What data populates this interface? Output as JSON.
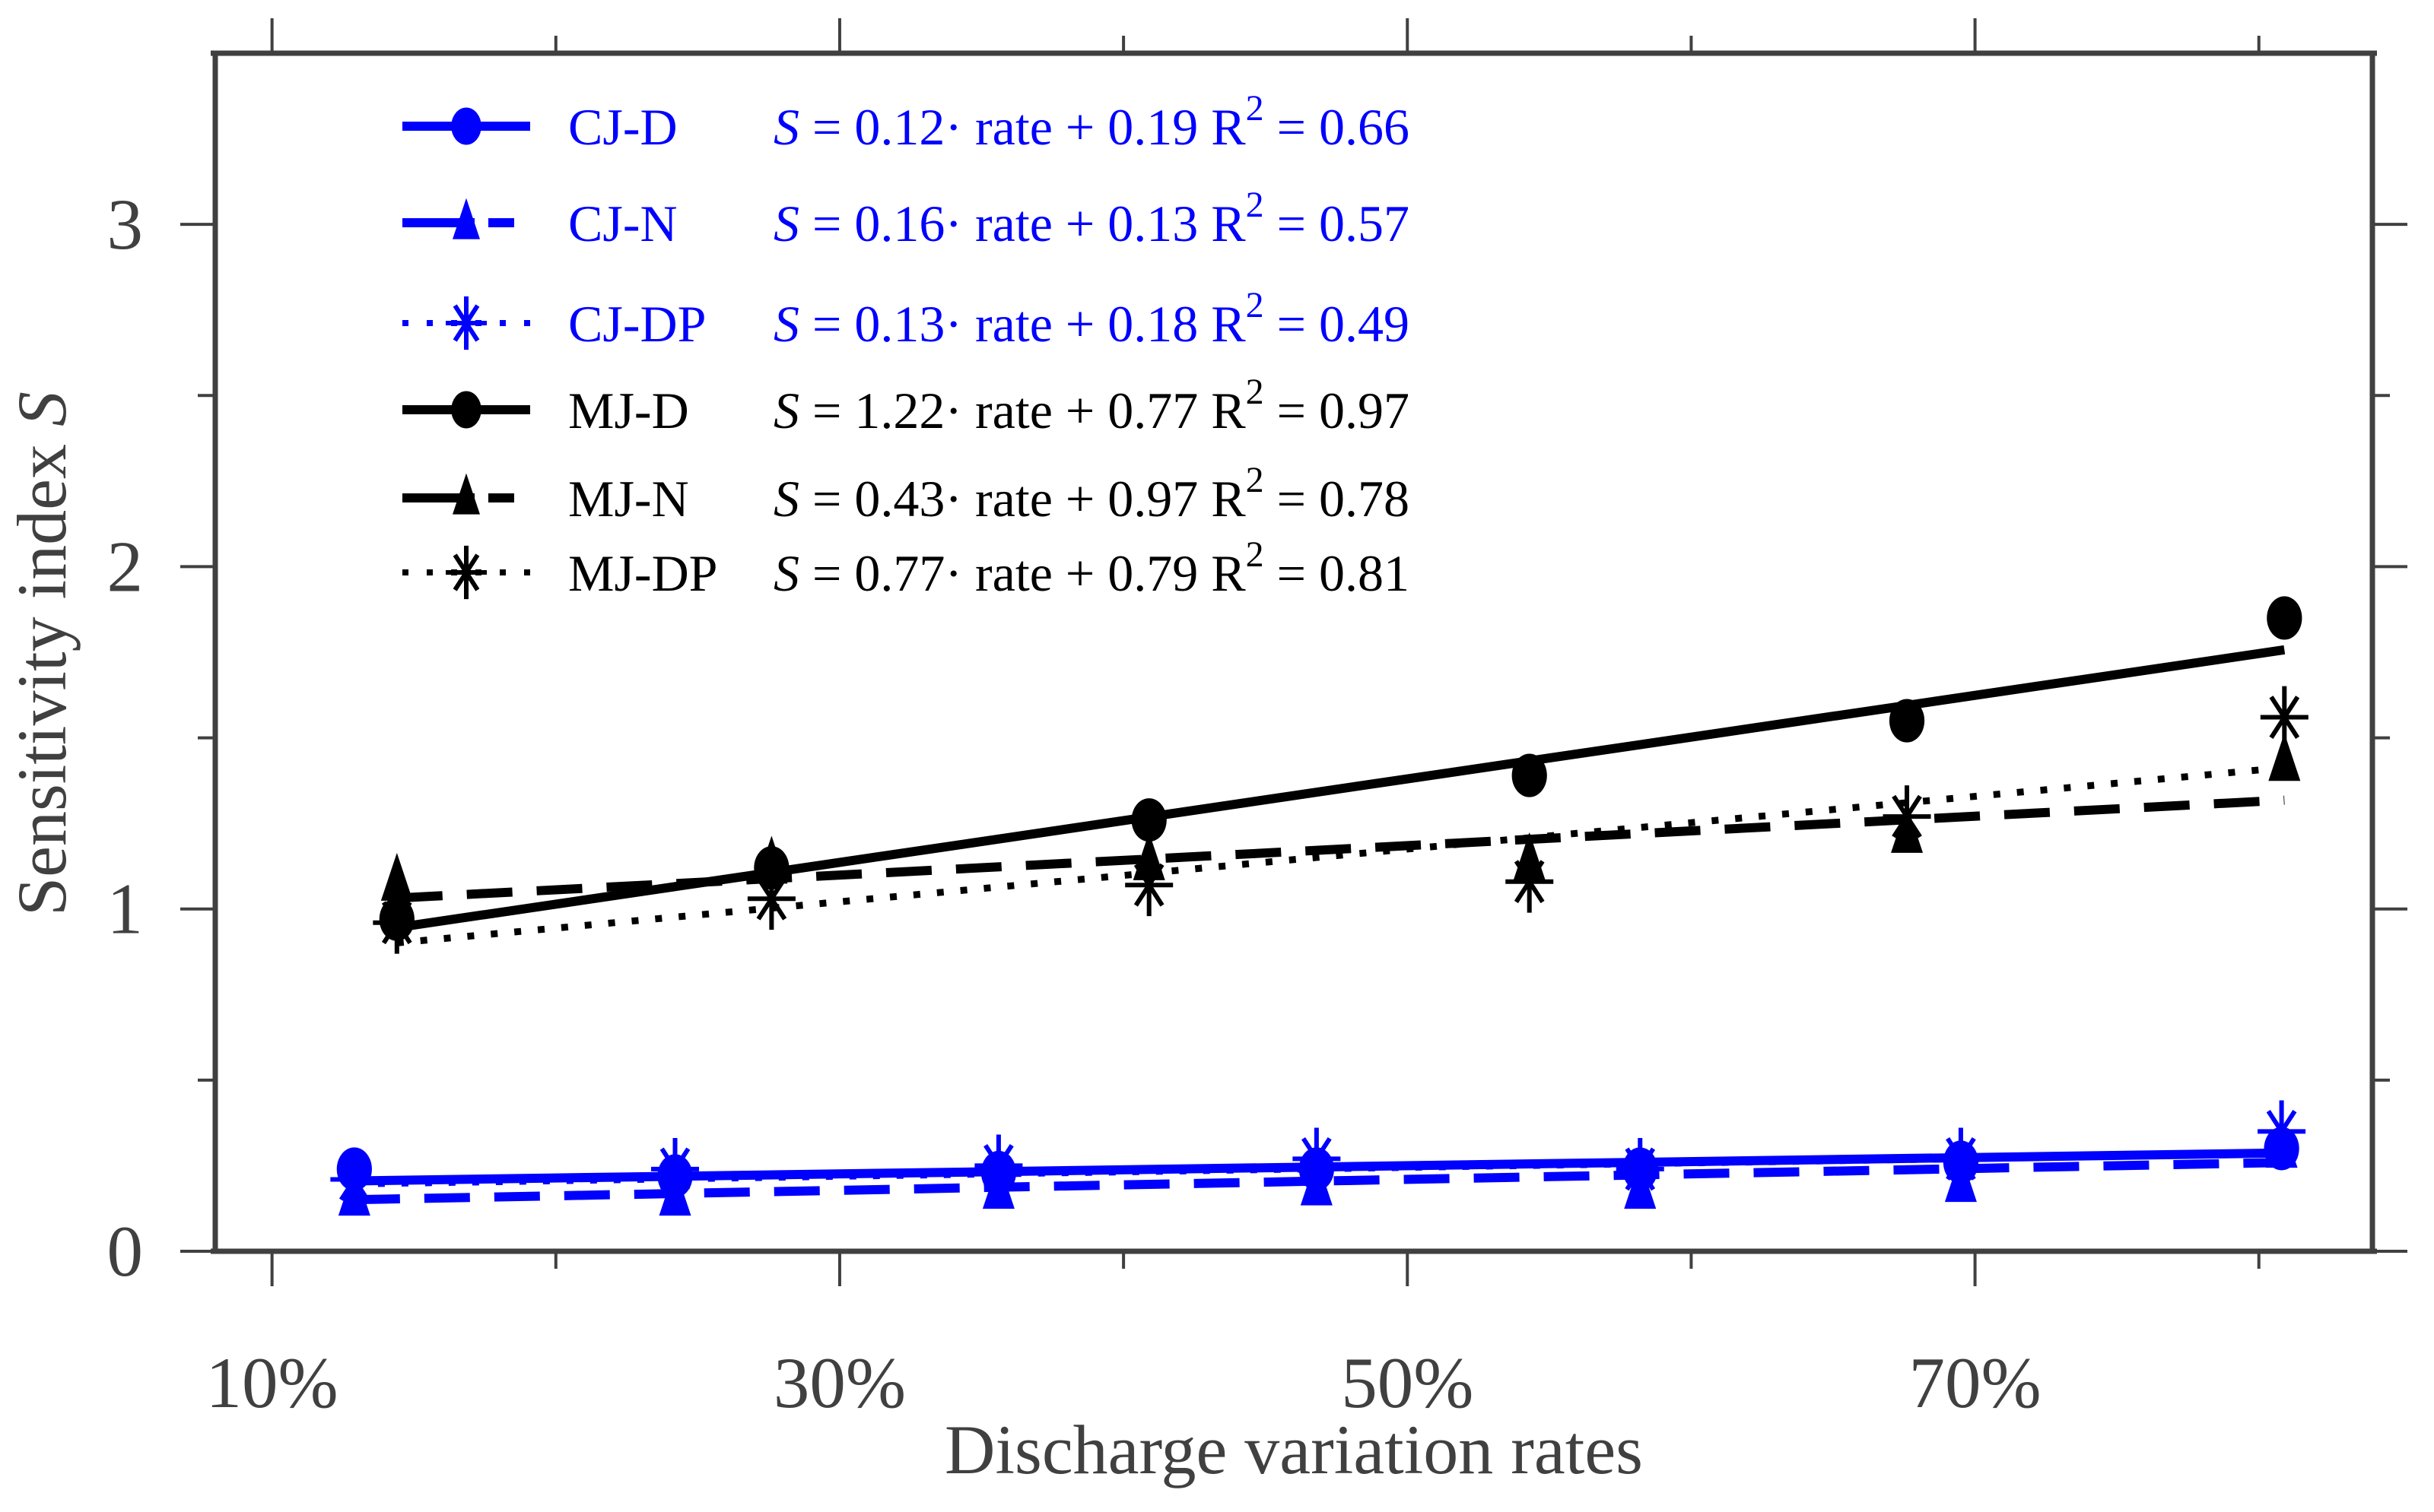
{
  "chart_data": {
    "type": "scatter",
    "title": "",
    "xlabel": "Discharge variation rates",
    "ylabel": "Sensitivity index",
    "ylabel_symbol": "S",
    "xlim": [
      0.08,
      0.84
    ],
    "ylim": [
      0,
      3.5
    ],
    "grid": false,
    "legend_position": "top-left",
    "x_ticks": [
      {
        "value": 0.1,
        "label": "10%"
      },
      {
        "value": 0.3,
        "label": "30%"
      },
      {
        "value": 0.5,
        "label": "50%"
      },
      {
        "value": 0.7,
        "label": "70%"
      }
    ],
    "x_minor_ticks": [
      0.2,
      0.4,
      0.6,
      0.8
    ],
    "y_ticks": [
      {
        "value": 0,
        "label": "0"
      },
      {
        "value": 1,
        "label": "1"
      },
      {
        "value": 2,
        "label": "2"
      },
      {
        "value": 3,
        "label": "3"
      }
    ],
    "y_minor_ticks": [
      0.5,
      1.5,
      2.5
    ],
    "series": [
      {
        "name": "CJ-D",
        "color": "#0000ff",
        "marker": "circle",
        "line": "solid",
        "fit": {
          "slope": 0.12,
          "intercept": 0.19,
          "r2": "0.66",
          "slope_label": "0.12",
          "intercept_label": "0.19"
        },
        "x": [
          0.129,
          0.242,
          0.356,
          0.468,
          0.582,
          0.695,
          0.808
        ],
        "y": [
          0.24,
          0.22,
          0.23,
          0.24,
          0.24,
          0.26,
          0.3
        ]
      },
      {
        "name": "CJ-N",
        "color": "#0000ff",
        "marker": "triangle",
        "line": "dashed",
        "fit": {
          "slope": 0.16,
          "intercept": 0.13,
          "r2": "0.57",
          "slope_label": "0.16",
          "intercept_label": "0.13"
        },
        "x": [
          0.129,
          0.242,
          0.356,
          0.468,
          0.582,
          0.695,
          0.808
        ],
        "y": [
          0.16,
          0.16,
          0.18,
          0.19,
          0.18,
          0.2,
          0.3
        ]
      },
      {
        "name": "CJ-DP",
        "color": "#0000ff",
        "marker": "asterisk",
        "line": "dotted",
        "fit": {
          "slope": 0.13,
          "intercept": 0.18,
          "r2": "0.49",
          "slope_label": "0.13",
          "intercept_label": "0.18"
        },
        "x": [
          0.129,
          0.242,
          0.356,
          0.468,
          0.582,
          0.695,
          0.808
        ],
        "y": [
          0.21,
          0.24,
          0.25,
          0.27,
          0.24,
          0.27,
          0.35
        ]
      },
      {
        "name": "MJ-D",
        "color": "#000000",
        "marker": "circle",
        "line": "solid",
        "fit": {
          "slope": 1.22,
          "intercept": 0.77,
          "r2": "0.97",
          "slope_label": "1.22",
          "intercept_label": "0.77"
        },
        "x": [
          0.144,
          0.276,
          0.409,
          0.543,
          0.676,
          0.809
        ],
        "y": [
          0.97,
          1.12,
          1.26,
          1.39,
          1.55,
          1.85
        ]
      },
      {
        "name": "MJ-N",
        "color": "#000000",
        "marker": "triangle",
        "line": "dashed",
        "fit": {
          "slope": 0.43,
          "intercept": 0.97,
          "r2": "0.78",
          "slope_label": "0.43",
          "intercept_label": "0.97"
        },
        "x": [
          0.144,
          0.276,
          0.409,
          0.543,
          0.676,
          0.809
        ],
        "y": [
          1.08,
          1.13,
          1.14,
          1.14,
          1.22,
          1.43
        ]
      },
      {
        "name": "MJ-DP",
        "color": "#000000",
        "marker": "asterisk",
        "line": "dotted",
        "fit": {
          "slope": 0.77,
          "intercept": 0.79,
          "r2": "0.81",
          "slope_label": "0.77",
          "intercept_label": "0.79"
        },
        "x": [
          0.144,
          0.276,
          0.409,
          0.543,
          0.676,
          0.809
        ],
        "y": [
          0.96,
          1.03,
          1.07,
          1.08,
          1.27,
          1.56
        ]
      }
    ]
  },
  "legend": {
    "entries": [
      {
        "label": "CJ-D",
        "equation_prefix": "S",
        "equation_body": " = 0.12· rate + 0.19  R",
        "r2_sup": "2",
        "r2_value": " = 0.66"
      },
      {
        "label": "CJ-N",
        "equation_prefix": "S",
        "equation_body": " = 0.16· rate + 0.13  R",
        "r2_sup": "2",
        "r2_value": " = 0.57"
      },
      {
        "label": "CJ-DP",
        "equation_prefix": "S",
        "equation_body": " = 0.13· rate + 0.18  R",
        "r2_sup": "2",
        "r2_value": " = 0.49"
      },
      {
        "label": "MJ-D",
        "equation_prefix": "S",
        "equation_body": " = 1.22· rate + 0.77  R",
        "r2_sup": "2",
        "r2_value": " = 0.97"
      },
      {
        "label": "MJ-N",
        "equation_prefix": "S",
        "equation_body": " = 0.43· rate + 0.97  R",
        "r2_sup": "2",
        "r2_value": " = 0.78"
      },
      {
        "label": "MJ-DP",
        "equation_prefix": "S",
        "equation_body": " = 0.77· rate + 0.79  R",
        "r2_sup": "2",
        "r2_value": " = 0.81"
      }
    ]
  },
  "axes": {
    "ylabel_text": "Sensitivity index ",
    "ylabel_symbol": "S",
    "xlabel_text": "Discharge variation rates",
    "axis_color": "#404040"
  }
}
